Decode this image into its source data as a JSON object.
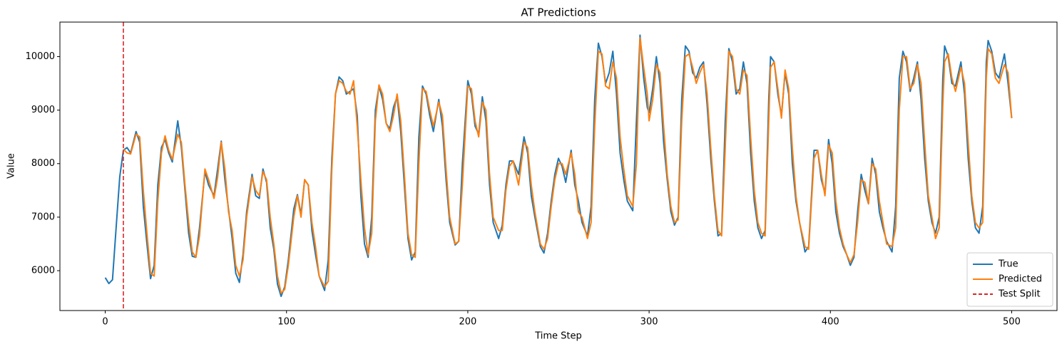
{
  "chart_data": {
    "type": "line",
    "title": "AT Predictions",
    "x_label": "Time Step",
    "y_label": "Value",
    "x": [
      0,
      2,
      4,
      6,
      8,
      10,
      12,
      14,
      17,
      19,
      21,
      23,
      25,
      27,
      29,
      31,
      33,
      35,
      37,
      40,
      42,
      44,
      46,
      48,
      50,
      52,
      55,
      57,
      60,
      62,
      64,
      66,
      68,
      70,
      72,
      74,
      76,
      78,
      81,
      83,
      85,
      87,
      89,
      91,
      93,
      95,
      97,
      99,
      101,
      104,
      106,
      108,
      110,
      112,
      114,
      116,
      118,
      121,
      123,
      125,
      127,
      129,
      131,
      133,
      135,
      137,
      139,
      141,
      143,
      145,
      147,
      149,
      151,
      153,
      155,
      157,
      159,
      161,
      163,
      165,
      167,
      169,
      171,
      173,
      175,
      177,
      179,
      181,
      184,
      186,
      188,
      190,
      193,
      195,
      197,
      200,
      202,
      204,
      206,
      208,
      210,
      212,
      214,
      217,
      219,
      221,
      223,
      225,
      228,
      231,
      233,
      235,
      237,
      240,
      242,
      244,
      246,
      248,
      250,
      252,
      254,
      257,
      259,
      261,
      263,
      266,
      268,
      270,
      272,
      274,
      276,
      278,
      280,
      282,
      284,
      286,
      288,
      291,
      293,
      295,
      297,
      299,
      300,
      302,
      304,
      306,
      308,
      310,
      312,
      314,
      316,
      318,
      320,
      322,
      324,
      326,
      328,
      330,
      332,
      334,
      336,
      338,
      340,
      342,
      344,
      346,
      348,
      350,
      352,
      354,
      356,
      358,
      360,
      362,
      364,
      366,
      367,
      369,
      371,
      373,
      375,
      377,
      379,
      381,
      383,
      386,
      388,
      391,
      393,
      395,
      397,
      399,
      401,
      403,
      405,
      407,
      409,
      411,
      413,
      415,
      417,
      419,
      421,
      423,
      425,
      427,
      429,
      431,
      434,
      436,
      438,
      440,
      442,
      444,
      446,
      448,
      450,
      452,
      454,
      456,
      458,
      460,
      462,
      463,
      465,
      467,
      469,
      472,
      474,
      476,
      478,
      480,
      482,
      484,
      486,
      487,
      489,
      491,
      493,
      496,
      498,
      500
    ],
    "series": [
      {
        "name": "True",
        "color": "#1f77b4",
        "values": [
          5870,
          5760,
          5830,
          6800,
          7750,
          8250,
          8300,
          8200,
          8600,
          8400,
          7200,
          6500,
          5850,
          6100,
          7600,
          8300,
          8450,
          8200,
          8030,
          8800,
          8300,
          7500,
          6700,
          6270,
          6250,
          6800,
          7850,
          7600,
          7400,
          7900,
          8420,
          7700,
          7150,
          6600,
          5950,
          5780,
          6300,
          7100,
          7800,
          7400,
          7350,
          7900,
          7650,
          6800,
          6400,
          5750,
          5520,
          5700,
          6200,
          7150,
          7420,
          7050,
          7700,
          7600,
          6750,
          6300,
          5900,
          5630,
          6200,
          8100,
          9300,
          9620,
          9550,
          9300,
          9350,
          9400,
          8900,
          7400,
          6500,
          6250,
          7000,
          9000,
          9450,
          9200,
          8750,
          8650,
          9050,
          9250,
          8600,
          7600,
          6600,
          6200,
          6350,
          8500,
          9450,
          9300,
          8900,
          8600,
          9200,
          8700,
          7700,
          6900,
          6480,
          6550,
          8000,
          9550,
          9300,
          8700,
          8550,
          9250,
          8800,
          7600,
          6900,
          6600,
          6850,
          7600,
          8050,
          8050,
          7800,
          8500,
          8200,
          7400,
          7000,
          6450,
          6330,
          6700,
          7300,
          7800,
          8100,
          7950,
          7650,
          8250,
          7600,
          7300,
          6900,
          6650,
          7200,
          9200,
          10250,
          10000,
          9500,
          9700,
          10100,
          9300,
          8200,
          7700,
          7300,
          7120,
          8800,
          10400,
          9600,
          9050,
          8950,
          9400,
          10000,
          9500,
          8400,
          7700,
          7100,
          6850,
          7000,
          9200,
          10200,
          10100,
          9700,
          9600,
          9800,
          9900,
          9100,
          8100,
          7300,
          6650,
          6700,
          8800,
          10150,
          9900,
          9300,
          9400,
          9900,
          9500,
          8200,
          7300,
          6800,
          6600,
          6750,
          9200,
          10000,
          9900,
          9300,
          8900,
          9700,
          9300,
          8000,
          7300,
          6900,
          6350,
          6450,
          8250,
          8250,
          7700,
          7450,
          8450,
          8000,
          7100,
          6700,
          6450,
          6300,
          6100,
          6250,
          7100,
          7800,
          7500,
          7250,
          8100,
          7800,
          7100,
          6800,
          6550,
          6350,
          7200,
          9600,
          10100,
          9900,
          9350,
          9600,
          9900,
          9200,
          8100,
          7300,
          6900,
          6700,
          7000,
          9600,
          10200,
          10000,
          9500,
          9450,
          9900,
          9300,
          8100,
          7300,
          6800,
          6700,
          7200,
          9900,
          10300,
          10100,
          9700,
          9600,
          10050,
          9500,
          8850
        ]
      },
      {
        "name": "Predicted",
        "color": "#ff7f0e",
        "values": [
          null,
          null,
          null,
          null,
          null,
          8270,
          8200,
          8180,
          8550,
          8500,
          7500,
          6700,
          5950,
          5900,
          7300,
          8200,
          8520,
          8250,
          8080,
          8550,
          8400,
          7600,
          6900,
          6350,
          6250,
          6650,
          7900,
          7700,
          7350,
          7750,
          8400,
          7900,
          7100,
          6750,
          6100,
          5900,
          6200,
          7000,
          7750,
          7500,
          7400,
          7850,
          7700,
          7000,
          6500,
          5900,
          5580,
          5650,
          6100,
          7000,
          7400,
          7000,
          7700,
          7600,
          6900,
          6450,
          5900,
          5700,
          5800,
          7900,
          9300,
          9550,
          9500,
          9350,
          9300,
          9550,
          8700,
          7700,
          6800,
          6300,
          6700,
          8800,
          9470,
          9300,
          8750,
          8600,
          8900,
          9300,
          8800,
          7800,
          6700,
          6300,
          6250,
          8000,
          9400,
          9350,
          9000,
          8700,
          9150,
          8900,
          7900,
          7000,
          6500,
          6550,
          7600,
          9450,
          9400,
          8800,
          8500,
          9150,
          9000,
          7800,
          7000,
          6750,
          6750,
          7500,
          7950,
          8050,
          7600,
          8400,
          8300,
          7600,
          7100,
          6500,
          6400,
          6600,
          7200,
          7700,
          8000,
          8000,
          7800,
          8200,
          7800,
          7100,
          7000,
          6600,
          6900,
          8700,
          10100,
          10050,
          9450,
          9400,
          9900,
          9600,
          8500,
          7900,
          7400,
          7200,
          8000,
          10350,
          9800,
          9300,
          8800,
          9200,
          9850,
          9700,
          8700,
          7800,
          7200,
          6900,
          6950,
          8800,
          10000,
          10050,
          9800,
          9500,
          9700,
          9850,
          9300,
          8300,
          7400,
          6750,
          6650,
          8300,
          10100,
          10000,
          9400,
          9300,
          9750,
          9650,
          8500,
          7500,
          6900,
          6700,
          6650,
          8800,
          9800,
          9900,
          9400,
          8850,
          9750,
          9400,
          8300,
          7400,
          6900,
          6450,
          6400,
          8100,
          8250,
          7800,
          7400,
          8350,
          8200,
          7300,
          6800,
          6500,
          6300,
          6150,
          6300,
          6900,
          7700,
          7650,
          7250,
          8000,
          7900,
          7300,
          6900,
          6500,
          6450,
          6800,
          9000,
          10000,
          10000,
          9400,
          9500,
          9850,
          9500,
          8400,
          7400,
          7000,
          6600,
          6800,
          9100,
          9900,
          10050,
          9600,
          9350,
          9800,
          9500,
          8400,
          7400,
          6900,
          6800,
          6900,
          9600,
          10150,
          10050,
          9600,
          9500,
          9850,
          9700,
          8850
        ]
      }
    ],
    "split": {
      "name": "Test Split",
      "value": 10,
      "color": "#d62728"
    },
    "xlim": [
      -25,
      525
    ],
    "xticks": [
      0,
      100,
      200,
      300,
      400,
      500
    ],
    "ylim": [
      5255,
      10645
    ],
    "yticks": [
      6000,
      7000,
      8000,
      9000,
      10000
    ],
    "legend": "lower right"
  }
}
